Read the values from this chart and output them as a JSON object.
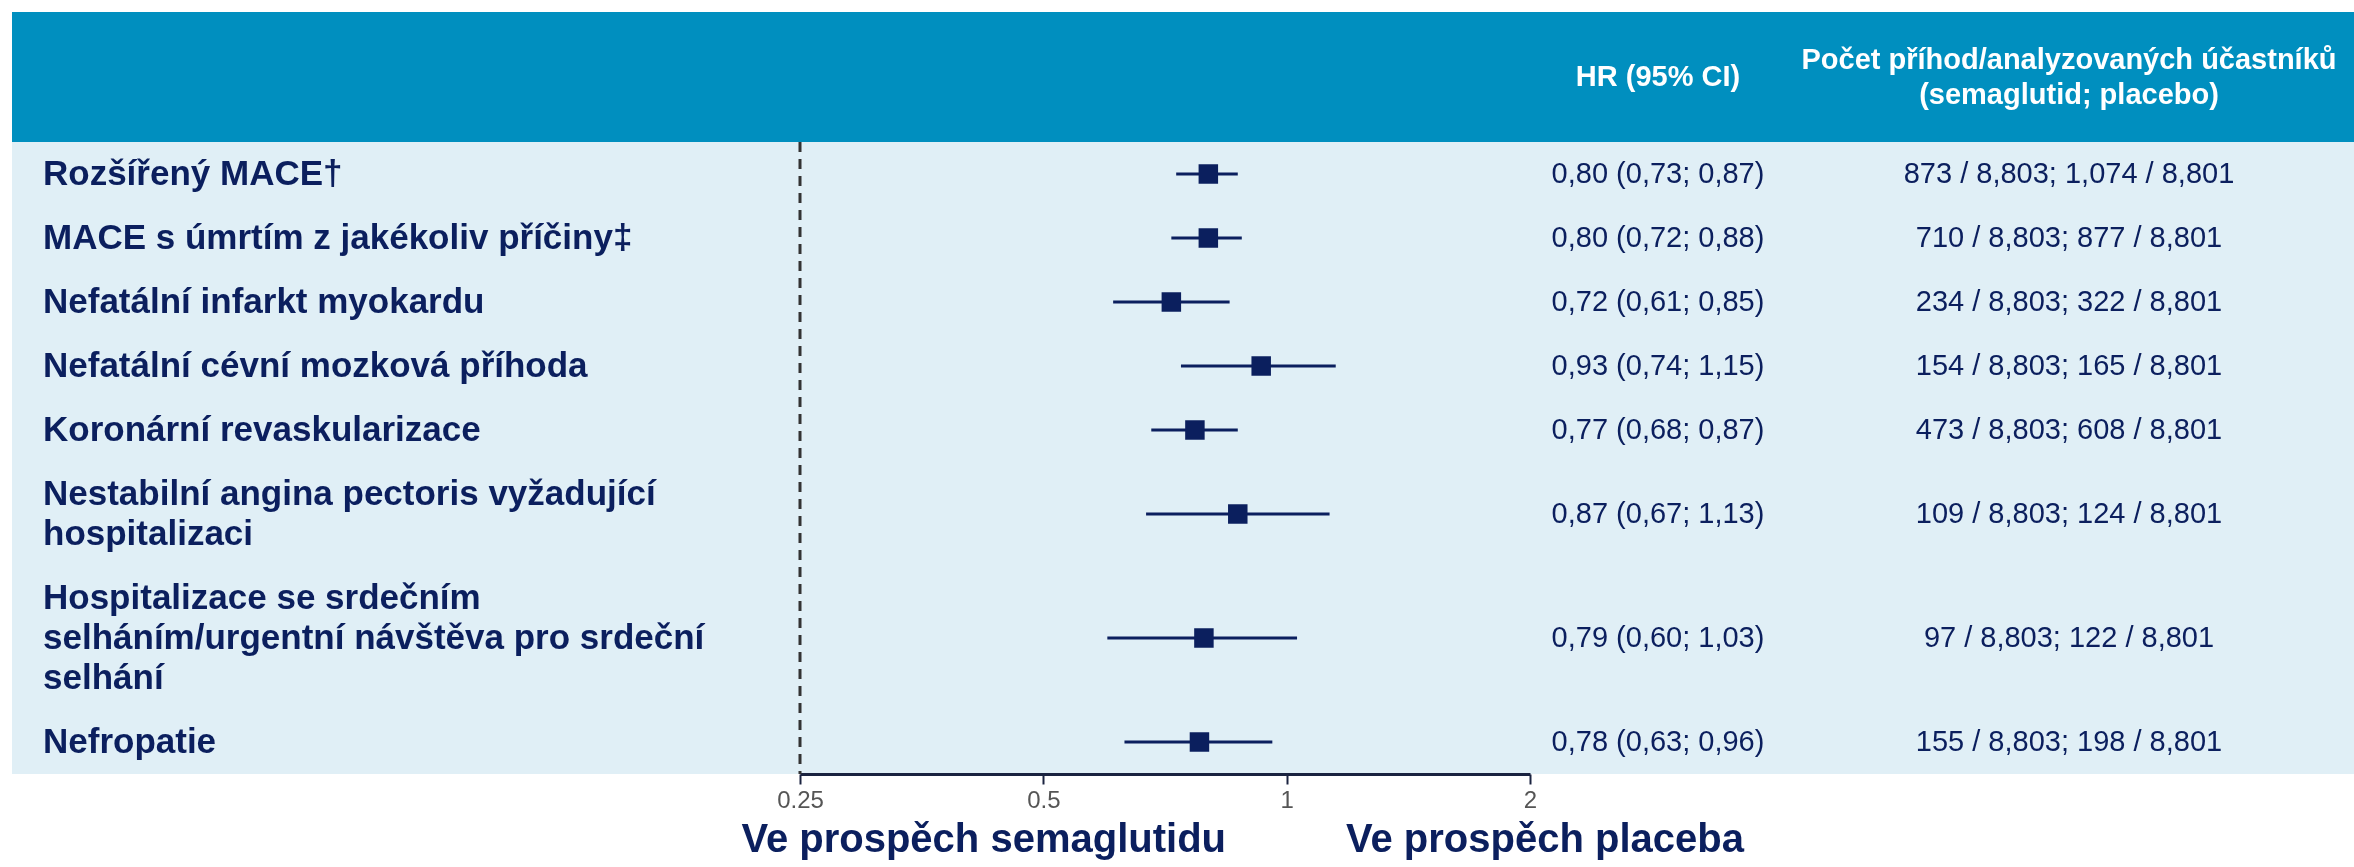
{
  "chart_data": {
    "type": "scatter",
    "orientation": "horizontal",
    "categories": [
      "Rozšířený MACE†",
      "MACE s úmrtím z jakékoliv příčiny‡",
      "Nefatální infarkt myokardu",
      "Nefatální cévní mozková příhoda",
      "Koronární revaskularizace",
      "Nestabilní angina pectoris vyžadující hospitalizaci",
      "Hospitalizace se srdečním selháním/urgentní návštěva pro srdeční selhání",
      "Nefropatie"
    ],
    "values": [
      0.8,
      0.8,
      0.72,
      0.93,
      0.77,
      0.87,
      0.79,
      0.78
    ],
    "errors": [
      [
        0.73,
        0.87
      ],
      [
        0.72,
        0.88
      ],
      [
        0.61,
        0.85
      ],
      [
        0.74,
        1.15
      ],
      [
        0.68,
        0.87
      ],
      [
        0.67,
        1.13
      ],
      [
        0.6,
        1.03
      ],
      [
        0.63,
        0.96
      ]
    ],
    "value_labels": [
      "0,80 (0,73; 0,87)",
      "0,80 (0,72; 0,88)",
      "0,72 (0,61; 0,85)",
      "0,93 (0,74; 1,15)",
      "0,77 (0,68; 0,87)",
      "0,87 (0,67; 1,13)",
      "0,79 (0,60; 1,03)",
      "0,78 (0,63; 0,96)"
    ],
    "color": "#0b1f5e",
    "marker": "square",
    "log": "x",
    "xlim": [
      0.25,
      2
    ],
    "xticks": [
      0.25,
      0.5,
      1,
      2
    ],
    "ref_lines": [
      {
        "axis": "x",
        "value": 0.25,
        "color": "#333333",
        "line_style": "dashed"
      }
    ],
    "annotations": [
      "HR (95% CI)",
      "Počet příhod/analyzovaných účastníků (semaglutid; placebo)",
      "873 / 8,803; 1,074 / 8,801",
      "710 / 8,803; 877 / 8,801",
      "234 / 8,803; 322 / 8,801",
      "154 / 8,803; 165 / 8,801",
      "473 / 8,803; 608 / 8,801",
      "109 / 8,803; 124 / 8,801",
      "97 / 8,803; 122 / 8,801",
      "155 / 8,803; 198 / 8,801",
      "Ve prospěch semaglutidu",
      "Ve prospěch placeba"
    ]
  }
}
